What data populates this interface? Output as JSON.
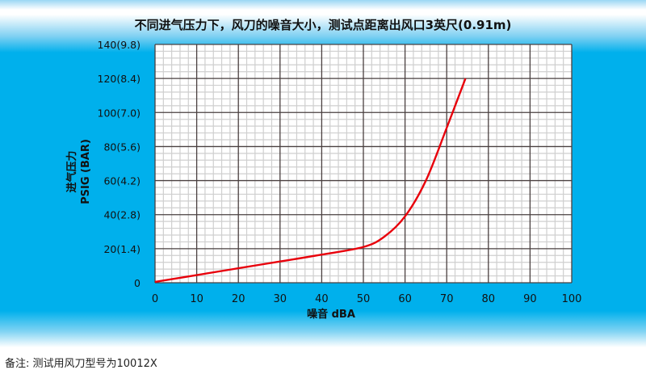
{
  "chart_data": {
    "type": "line",
    "title": "不同进气压力下，风刀的噪音大小，测试点距离出风口3英尺(0.91m)",
    "xlabel": "噪音 dBA",
    "ylabel": [
      "进气压力",
      "PSIG (BAR)"
    ],
    "xlim": [
      0,
      100
    ],
    "ylim": [
      0,
      140
    ],
    "xticks": [
      "0",
      "10",
      "20",
      "30",
      "40",
      "50",
      "60",
      "70",
      "80",
      "90",
      "100"
    ],
    "yticks": [
      "0",
      "20(1.4)",
      "40(2.8)",
      "60(4.2)",
      "80(5.6)",
      "100(7.0)",
      "120(8.4)",
      "140(9.8)"
    ],
    "grid": true,
    "series": [
      {
        "color": "#e8000b",
        "x": [
          0,
          10,
          20,
          30,
          40,
          50,
          55,
          60,
          65,
          70,
          74.5
        ],
        "y": [
          0.5,
          4.5,
          8.5,
          12.5,
          16.5,
          21,
          27,
          39,
          60,
          91,
          120
        ]
      }
    ]
  },
  "note": "备注: 测试用风刀型号为10012X"
}
